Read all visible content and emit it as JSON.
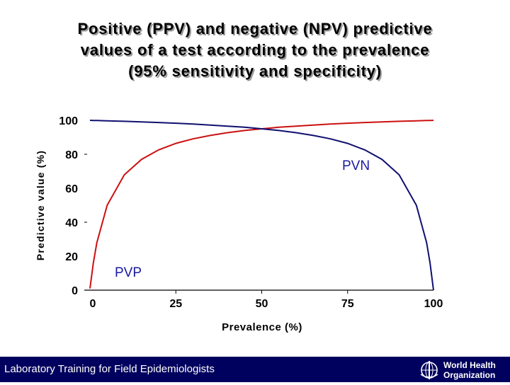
{
  "title_lines": [
    "Positive (PPV) and negative (NPV) predictive",
    "values of a test according to the prevalence",
    "(95% sensitivity and specificity)"
  ],
  "chart_data": {
    "type": "line",
    "title": "Positive (PPV) and negative (NPV) predictive values of a test according to the prevalence (95% sensitivity and specificity)",
    "xlabel": "Prevalence (%)",
    "ylabel": "Predictive value (%)",
    "xlim": [
      0,
      100
    ],
    "ylim": [
      0,
      100
    ],
    "xticks": [
      0,
      25,
      50,
      75,
      100
    ],
    "yticks": [
      0,
      20,
      40,
      60,
      80,
      100
    ],
    "x": [
      1,
      2,
      5,
      10,
      15,
      20,
      25,
      30,
      35,
      40,
      45,
      50,
      55,
      60,
      65,
      70,
      75,
      80,
      85,
      90,
      95,
      98,
      99
    ],
    "series": [
      {
        "name": "PVP",
        "color": "#cc1010",
        "values": [
          16.1,
          27.9,
          50.0,
          67.9,
          77.0,
          82.6,
          86.4,
          89.1,
          91.1,
          92.7,
          94.0,
          95.0,
          95.9,
          96.6,
          97.2,
          97.8,
          98.3,
          98.7,
          99.1,
          99.4,
          99.7,
          99.9,
          99.9
        ]
      },
      {
        "name": "PVN",
        "color": "#101070",
        "values": [
          99.9,
          99.9,
          99.7,
          99.4,
          99.1,
          98.7,
          98.3,
          97.8,
          97.2,
          96.6,
          95.9,
          95.0,
          94.0,
          92.7,
          91.1,
          89.1,
          86.4,
          82.6,
          77.0,
          67.9,
          50.0,
          27.9,
          16.1
        ]
      }
    ],
    "annotations": [
      {
        "text": "PVN",
        "series": "PVN"
      },
      {
        "text": "PVP",
        "series": "PVP"
      }
    ]
  },
  "footer": {
    "text": "Laboratory Training for Field Epidemiologists",
    "logo_line1": "World Health",
    "logo_line2": "Organization"
  },
  "colors": {
    "footer_bg": "#00005e",
    "annotation": "#1a1aa0"
  }
}
